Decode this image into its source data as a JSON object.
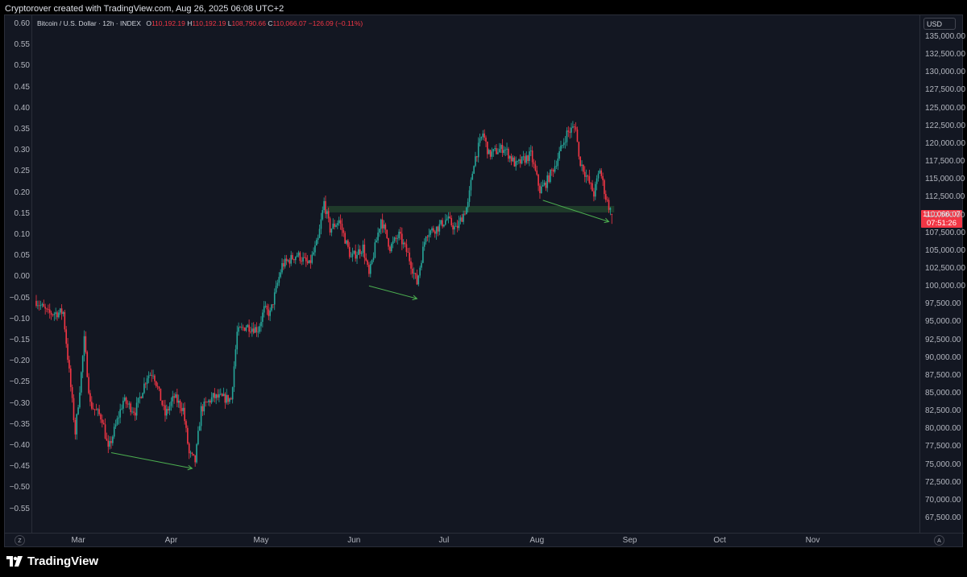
{
  "caption": "Cryptorover created with TradingView.com, Aug 26, 2025 06:08 UTC+2",
  "legend": {
    "symbol": "Bitcoin / U.S. Dollar · 12h · INDEX",
    "open_key": "O",
    "open": "110,192.19",
    "high_key": "H",
    "high": "110,192.19",
    "low_key": "L",
    "low": "108,790.66",
    "close_key": "C",
    "close": "110,066.07",
    "change": "−126.09 (−0.11%)"
  },
  "currency": "USD",
  "last_price": "110,066.07",
  "countdown": "07:51:26",
  "left_axis_ticks": [
    "0.60",
    "0.55",
    "0.50",
    "0.45",
    "0.40",
    "0.35",
    "0.30",
    "0.25",
    "0.20",
    "0.15",
    "0.10",
    "0.05",
    "0.00",
    "−0.05",
    "−0.10",
    "−0.15",
    "−0.20",
    "−0.25",
    "−0.30",
    "−0.35",
    "−0.40",
    "−0.45",
    "−0.50",
    "−0.55"
  ],
  "right_axis_ticks": [
    "135,000.00",
    "132,500.00",
    "130,000.00",
    "127,500.00",
    "125,000.00",
    "122,500.00",
    "120,000.00",
    "117,500.00",
    "115,000.00",
    "112,500.00",
    "110,000.00",
    "107,500.00",
    "105,000.00",
    "102,500.00",
    "100,000.00",
    "97,500.00",
    "95,000.00",
    "92,500.00",
    "90,000.00",
    "87,500.00",
    "85,000.00",
    "82,500.00",
    "80,000.00",
    "77,500.00",
    "75,000.00",
    "72,500.00",
    "70,000.00",
    "67,500.00"
  ],
  "time_ticks": [
    "Mar",
    "Apr",
    "May",
    "Jun",
    "Jul",
    "Aug",
    "Sep",
    "Oct",
    "Nov"
  ],
  "corner_left": "Z",
  "corner_right": "A",
  "brand": "TradingView",
  "colors": {
    "up": "#26a69a",
    "down": "#f23645",
    "background": "#131722",
    "zone": "#1f3a2a",
    "arrow": "#4caf50"
  },
  "chart_data": {
    "type": "candlestick",
    "timeframe": "12h",
    "y_unit": "USD",
    "ylim": [
      66500,
      136500
    ],
    "start_date": "2025-02-15",
    "anchors": [
      [
        "2025-02-15",
        98000
      ],
      [
        "2025-02-19",
        96200
      ],
      [
        "2025-02-24",
        96400
      ],
      [
        "2025-02-26",
        88000
      ],
      [
        "2025-02-28",
        79500
      ],
      [
        "2025-03-02",
        87800
      ],
      [
        "2025-03-03",
        92500
      ],
      [
        "2025-03-05",
        83500
      ],
      [
        "2025-03-09",
        81500
      ],
      [
        "2025-03-11",
        77000
      ],
      [
        "2025-03-16",
        84000
      ],
      [
        "2025-03-20",
        82500
      ],
      [
        "2025-03-24",
        87500
      ],
      [
        "2025-03-26",
        88000
      ],
      [
        "2025-03-30",
        82000
      ],
      [
        "2025-04-02",
        84500
      ],
      [
        "2025-04-05",
        82800
      ],
      [
        "2025-04-07",
        76500
      ],
      [
        "2025-04-09",
        75500
      ],
      [
        "2025-04-11",
        82800
      ],
      [
        "2025-04-15",
        84500
      ],
      [
        "2025-04-21",
        84200
      ],
      [
        "2025-04-23",
        93500
      ],
      [
        "2025-04-26",
        94500
      ],
      [
        "2025-04-30",
        94000
      ],
      [
        "2025-05-02",
        96800
      ],
      [
        "2025-05-04",
        96200
      ],
      [
        "2025-05-08",
        103000
      ],
      [
        "2025-05-13",
        104500
      ],
      [
        "2025-05-17",
        103000
      ],
      [
        "2025-05-20",
        106500
      ],
      [
        "2025-05-22",
        111800
      ],
      [
        "2025-05-24",
        108000
      ],
      [
        "2025-05-27",
        109300
      ],
      [
        "2025-05-31",
        104000
      ],
      [
        "2025-06-04",
        105500
      ],
      [
        "2025-06-06",
        101500
      ],
      [
        "2025-06-10",
        109500
      ],
      [
        "2025-06-13",
        105500
      ],
      [
        "2025-06-16",
        107200
      ],
      [
        "2025-06-19",
        104500
      ],
      [
        "2025-06-22",
        100500
      ],
      [
        "2025-06-25",
        107500
      ],
      [
        "2025-06-29",
        108300
      ],
      [
        "2025-07-02",
        109500
      ],
      [
        "2025-07-05",
        108000
      ],
      [
        "2025-07-09",
        111500
      ],
      [
        "2025-07-11",
        117500
      ],
      [
        "2025-07-14",
        121500
      ],
      [
        "2025-07-16",
        118500
      ],
      [
        "2025-07-21",
        119500
      ],
      [
        "2025-07-25",
        117000
      ],
      [
        "2025-07-30",
        118500
      ],
      [
        "2025-08-02",
        113500
      ],
      [
        "2025-08-04",
        114500
      ],
      [
        "2025-08-07",
        117000
      ],
      [
        "2025-08-11",
        121500
      ],
      [
        "2025-08-14",
        122500
      ],
      [
        "2025-08-15",
        118000
      ],
      [
        "2025-08-20",
        113000
      ],
      [
        "2025-08-22",
        116500
      ],
      [
        "2025-08-24",
        112500
      ],
      [
        "2025-08-26",
        110066
      ]
    ],
    "last": {
      "open": 110192.19,
      "high": 110192.19,
      "low": 108790.66,
      "close": 110066.07
    },
    "resistance_zone": {
      "from": "2025-05-23",
      "to": "2025-08-26",
      "low": 110400,
      "high": 111300
    },
    "divergence_arrows": [
      {
        "from": [
          "2025-03-12",
          76700
        ],
        "to": [
          "2025-04-08",
          74500
        ]
      },
      {
        "from": [
          "2025-06-06",
          100100
        ],
        "to": [
          "2025-06-22",
          98300
        ]
      },
      {
        "from": [
          "2025-08-03",
          112100
        ],
        "to": [
          "2025-08-25",
          109100
        ]
      }
    ]
  }
}
